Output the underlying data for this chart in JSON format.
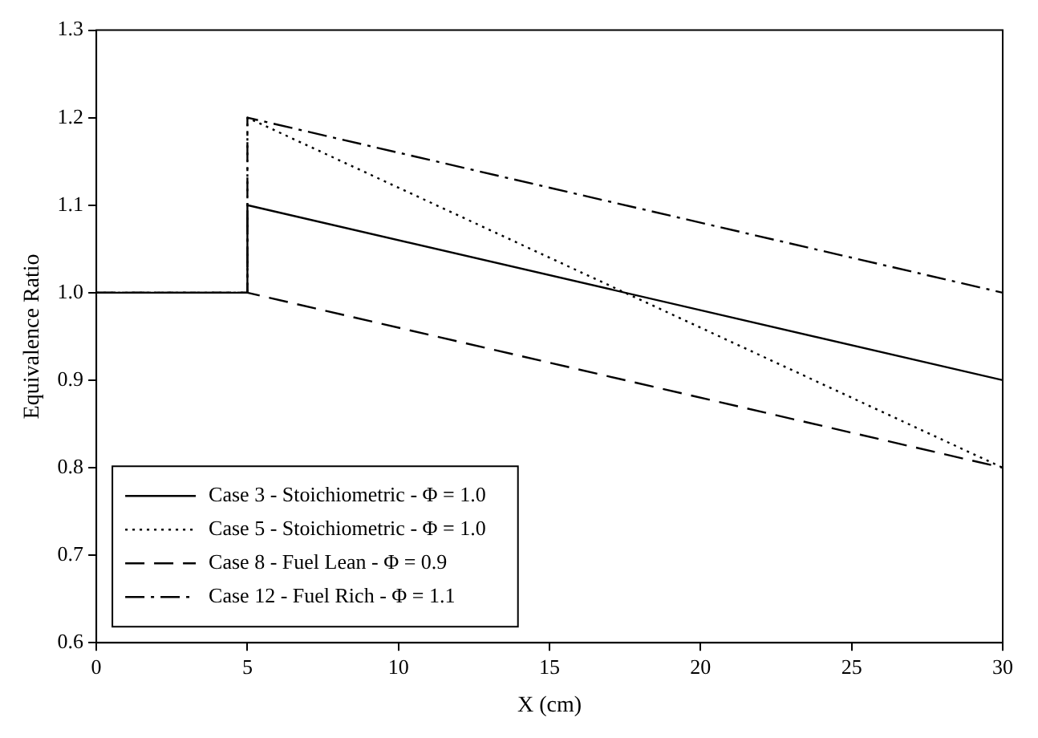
{
  "chart_data": {
    "type": "line",
    "xlabel": "X (cm)",
    "ylabel": "Equivalence Ratio",
    "xlim": [
      0,
      30
    ],
    "xticks": [
      0,
      5,
      10,
      15,
      20,
      25,
      30
    ],
    "ylim": [
      0.6,
      1.3
    ],
    "yticks": [
      0.6,
      0.7,
      0.8,
      0.9,
      {
        "value": 1,
        "label": "1.0"
      },
      1.1,
      1.2,
      1.3
    ],
    "grid": false,
    "legend": "bottom left",
    "marker": "none",
    "series": [
      {
        "name": "Case 3 - Stoichiometric - Φ = 1.0",
        "color": "#000000",
        "line_style": "solid",
        "x": [
          0,
          5,
          5,
          30
        ],
        "values": [
          1.0,
          1.0,
          1.1,
          0.9
        ]
      },
      {
        "name": "Case 5 - Stoichiometric - Φ = 1.0",
        "color": "#000000",
        "line_style": "dotted",
        "x": [
          0,
          5,
          5,
          30
        ],
        "values": [
          1.0,
          1.0,
          1.2,
          0.8
        ]
      },
      {
        "name": "Case 8 - Fuel Lean - Φ = 0.9",
        "color": "#000000",
        "line_style": "dashed",
        "x": [
          0,
          5,
          30
        ],
        "values": [
          1.0,
          1.0,
          0.8
        ]
      },
      {
        "name": "Case 12 - Fuel Rich - Φ = 1.1",
        "color": "#000000",
        "line_style": "dashdot",
        "x": [
          0,
          5,
          5,
          30
        ],
        "values": [
          1.0,
          1.0,
          1.2,
          1.0
        ]
      }
    ]
  }
}
